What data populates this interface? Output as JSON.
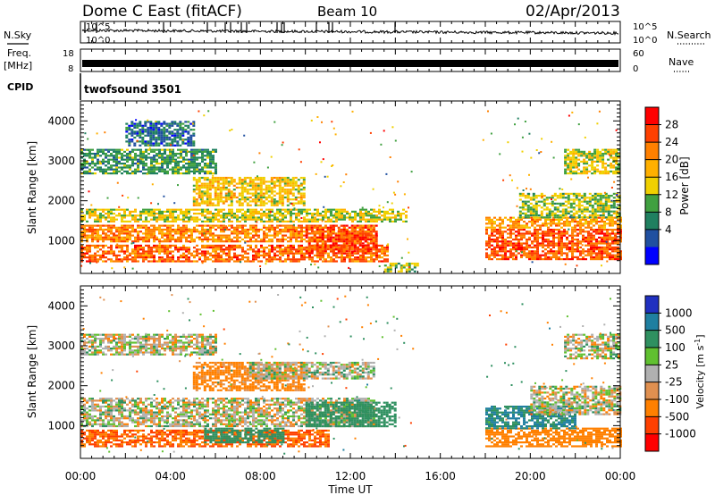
{
  "header": {
    "station": "Dome C East (fitACF)",
    "beam": "Beam 10",
    "date": "02/Apr/2013"
  },
  "noise_panel": {
    "left_label": "N.Sky",
    "right_label": "N.Search",
    "left_ticks": [
      "10^5",
      "10^0"
    ],
    "right_ticks": [
      "10^5",
      "10^0"
    ]
  },
  "freq_panel": {
    "left_label_1": "Freq.",
    "left_label_2": "[MHz]",
    "right_label": "Nave",
    "left_ticks": [
      "18",
      "8"
    ],
    "right_ticks": [
      "60",
      "0"
    ],
    "cpid_label": "CPID",
    "cpid_value": "twofsound 3501"
  },
  "x_axis": {
    "ticks": [
      "00:00",
      "04:00",
      "08:00",
      "12:00",
      "16:00",
      "20:00",
      "00:00"
    ],
    "label": "Time UT"
  },
  "power_colorbar": {
    "label": "Power [dB]",
    "ticks": [
      "28",
      "24",
      "20",
      "16",
      "12",
      "8",
      "4"
    ],
    "colors": [
      "#ff0000",
      "#ff4000",
      "#ff8000",
      "#ffb000",
      "#f0d000",
      "#40a040",
      "#208060",
      "#2050a0",
      "#0000ff"
    ]
  },
  "velocity_colorbar": {
    "label": "Velocity [m s^-1]",
    "ticks": [
      "1000",
      "500",
      "100",
      "25",
      "-25",
      "-100",
      "-500",
      "-1000"
    ],
    "colors": [
      "#2030c0",
      "#1f7fa0",
      "#2f9060",
      "#60c030",
      "#b0b0b0",
      "#e09050",
      "#ff8000",
      "#ff4000",
      "#ff0000"
    ]
  },
  "chart_data": [
    {
      "type": "heatmap",
      "title": "Dome C East (fitACF)",
      "subtitle": "Beam 10",
      "ylabel": "Slant Range [km]",
      "xlabel": "",
      "ylim": [
        180,
        4500
      ],
      "yticks": [
        1000,
        2000,
        3000,
        4000
      ],
      "xlim": [
        0,
        24
      ],
      "colorbar_label": "Power [dB]",
      "colorbar_range": [
        0,
        32
      ],
      "bands": [
        {
          "t0": 0.0,
          "t1": 13.6,
          "r0": 500,
          "r1": 900,
          "value": 26
        },
        {
          "t0": 0.0,
          "t1": 13.0,
          "r0": 1000,
          "r1": 1400,
          "value": 24
        },
        {
          "t0": 0.0,
          "t1": 14.5,
          "r0": 1500,
          "r1": 1800,
          "value": 16
        },
        {
          "t0": 5.0,
          "t1": 10.0,
          "r0": 1900,
          "r1": 2600,
          "value": 18
        },
        {
          "t0": 0.0,
          "t1": 6.0,
          "r0": 2700,
          "r1": 3300,
          "value": 10
        },
        {
          "t0": 2.0,
          "t1": 5.0,
          "r0": 3400,
          "r1": 4000,
          "value": 6
        },
        {
          "t0": 10.0,
          "t1": 13.2,
          "r0": 700,
          "r1": 1400,
          "value": 28
        },
        {
          "t0": 13.5,
          "t1": 15.0,
          "r0": 250,
          "r1": 450,
          "value": 14
        },
        {
          "t0": 18.0,
          "t1": 24.0,
          "r0": 550,
          "r1": 1300,
          "value": 27
        },
        {
          "t0": 18.0,
          "t1": 24.0,
          "r0": 1350,
          "r1": 1600,
          "value": 22
        },
        {
          "t0": 19.5,
          "t1": 24.0,
          "r0": 1600,
          "r1": 2200,
          "value": 14
        },
        {
          "t0": 21.5,
          "t1": 24.0,
          "r0": 2700,
          "r1": 3300,
          "value": 16
        }
      ]
    },
    {
      "type": "heatmap",
      "ylabel": "Slant Range [km]",
      "xlabel": "Time UT",
      "ylim": [
        180,
        4500
      ],
      "yticks": [
        1000,
        2000,
        3000,
        4000
      ],
      "xlim": [
        0,
        24
      ],
      "colorbar_label": "Velocity [m s^-1]",
      "colorbar_ticks": [
        1000,
        500,
        100,
        25,
        -25,
        -100,
        -500,
        -1000
      ],
      "bands": [
        {
          "t0": 0.0,
          "t1": 11.0,
          "r0": 500,
          "r1": 900,
          "value": -300
        },
        {
          "t0": 5.5,
          "t1": 9.0,
          "r0": 600,
          "r1": 950,
          "value": 200
        },
        {
          "t0": 0.0,
          "t1": 13.0,
          "r0": 1000,
          "r1": 1700,
          "value": 0
        },
        {
          "t0": 10.0,
          "t1": 14.0,
          "r0": 1000,
          "r1": 1600,
          "value": 150
        },
        {
          "t0": 5.0,
          "t1": 10.0,
          "r0": 1900,
          "r1": 2600,
          "value": -120
        },
        {
          "t0": 0.0,
          "t1": 6.0,
          "r0": 2800,
          "r1": 3300,
          "value": 0
        },
        {
          "t0": 7.5,
          "t1": 13.0,
          "r0": 2200,
          "r1": 2600,
          "value": 10
        },
        {
          "t0": 18.0,
          "t1": 24.0,
          "r0": 500,
          "r1": 950,
          "value": -200
        },
        {
          "t0": 18.0,
          "t1": 22.0,
          "r0": 950,
          "r1": 1500,
          "value": 300
        },
        {
          "t0": 20.0,
          "t1": 24.0,
          "r0": 1300,
          "r1": 2000,
          "value": 0
        },
        {
          "t0": 21.5,
          "t1": 24.0,
          "r0": 2700,
          "r1": 3300,
          "value": 0
        }
      ]
    }
  ]
}
